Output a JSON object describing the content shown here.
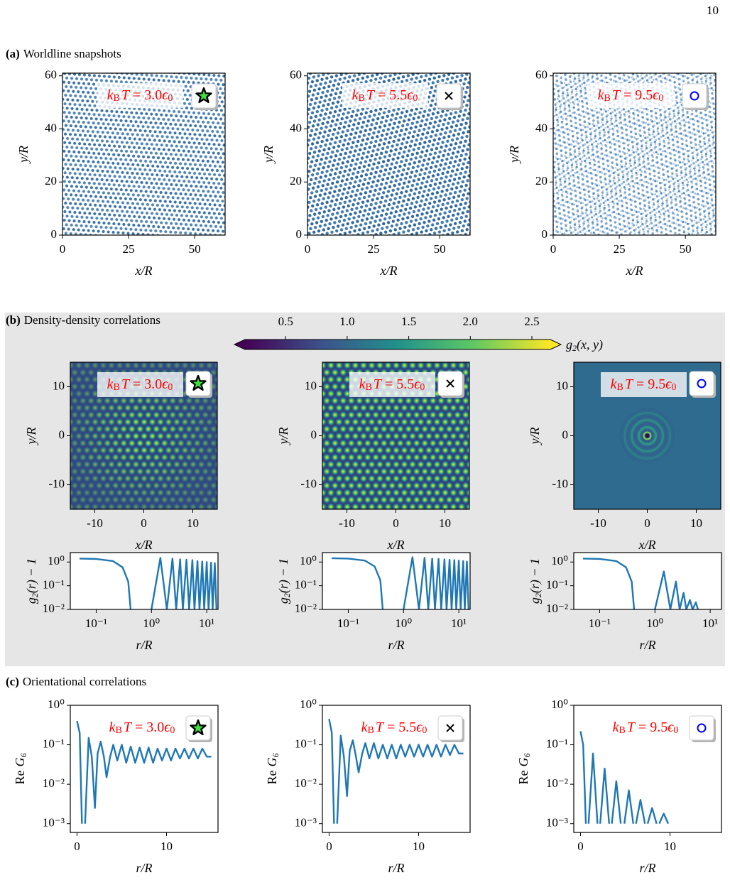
{
  "page_number": "10",
  "temperature_label": {
    "k": "k",
    "B": "B",
    "T": "T",
    "eq": " = ",
    "eps": "ϵ",
    "zero": "0"
  },
  "line_color": "#1f77b4",
  "panel_a": {
    "label": "(a)",
    "title": "Worldline snapshots",
    "xlabel": "x/R",
    "ylabel": "y/R",
    "xlim": [
      0,
      61.5
    ],
    "ylim": [
      0,
      61
    ],
    "xticks": [
      0,
      25,
      50
    ],
    "yticks": [
      0,
      20,
      40,
      60
    ],
    "plots": [
      {
        "temperature": "3.0",
        "marker": "star"
      },
      {
        "temperature": "5.5",
        "marker": "cross"
      },
      {
        "temperature": "9.5",
        "marker": "circle"
      }
    ]
  },
  "panel_b": {
    "label": "(b)",
    "title": "Density-density correlations",
    "colorbar": {
      "label": {
        "g": "g",
        "sub": "2",
        "rest": "(x, y)"
      },
      "clim": [
        0.17,
        2.65
      ],
      "ticks": [
        0.5,
        {
          "value": 1,
          "label": "1.0"
        },
        1.5,
        {
          "value": 2,
          "label": "2.0"
        },
        2.5
      ],
      "colormap": [
        "#440154",
        "#3b528b",
        "#21918c",
        "#5ec962",
        "#fde725"
      ]
    },
    "heatmap": {
      "xlabel": "x/R",
      "ylabel": "y/R",
      "xlim": [
        -15,
        15
      ],
      "ylim": [
        -15,
        15
      ],
      "xticks": [
        -10,
        0,
        10
      ],
      "yticks": [
        -10,
        0,
        10
      ]
    },
    "g2": {
      "xlabel": "r/R",
      "ylabel": {
        "g": "g",
        "sub": "2",
        "rest": "(r) − 1"
      },
      "xscale": "log",
      "yscale": "log",
      "xlim": [
        0.034,
        16
      ],
      "ylim": [
        0.01,
        2.5
      ],
      "xticks": [
        {
          "value": 0.1,
          "label": "10⁻¹"
        },
        {
          "value": 1,
          "label": "10⁰"
        },
        {
          "value": 10,
          "label": "10¹"
        }
      ],
      "yticks": [
        {
          "value": 0.01,
          "label": "10⁻²"
        },
        {
          "value": 0.1,
          "label": "10⁻¹"
        },
        {
          "value": 1,
          "label": "10⁰"
        }
      ]
    },
    "plots": [
      {
        "temperature": "3.0",
        "marker": "star",
        "r": [
          0.05,
          0.1,
          0.2,
          0.3,
          0.38,
          0.42,
          0.6,
          1.0,
          1.45,
          1.9,
          2.4,
          2.8,
          3.3,
          3.7,
          4.3,
          4.8,
          5.5,
          6.0,
          6.8,
          7.4,
          8.3,
          9.0,
          10.0,
          10.8,
          12.0,
          12.8,
          14.0,
          15.0
        ],
        "g2": [
          1.4,
          1.35,
          1.1,
          0.6,
          0.15,
          0.01,
          null,
          0.01,
          1.5,
          0.01,
          1.4,
          0.01,
          1.3,
          0.01,
          1.25,
          0.01,
          1.2,
          0.01,
          1.1,
          0.01,
          1.05,
          0.01,
          1.0,
          0.01,
          0.95,
          0.01,
          0.9,
          0.01
        ]
      },
      {
        "temperature": "5.5",
        "marker": "cross",
        "r": [
          0.05,
          0.1,
          0.2,
          0.3,
          0.38,
          0.42,
          0.6,
          1.0,
          1.45,
          1.9,
          2.4,
          2.8,
          3.3,
          3.7,
          4.3,
          4.8,
          5.5,
          6.0,
          6.8,
          7.4,
          8.3,
          9.0,
          10.0,
          10.8,
          12.0,
          12.8,
          14.0,
          15.0
        ],
        "g2": [
          1.45,
          1.4,
          1.15,
          0.65,
          0.17,
          0.01,
          null,
          0.01,
          1.6,
          0.01,
          1.5,
          0.01,
          1.4,
          0.01,
          1.35,
          0.01,
          1.3,
          0.01,
          1.25,
          0.01,
          1.2,
          0.01,
          1.15,
          0.01,
          1.1,
          0.01,
          1.05,
          0.01
        ]
      },
      {
        "temperature": "9.5",
        "marker": "circle",
        "r": [
          0.05,
          0.1,
          0.2,
          0.3,
          0.38,
          0.42,
          0.6,
          1.0,
          1.45,
          1.9,
          2.4,
          2.8,
          3.3,
          3.7,
          4.3,
          4.8,
          5.5,
          6.0
        ],
        "g2": [
          1.4,
          1.35,
          1.1,
          0.6,
          0.15,
          0.01,
          null,
          0.01,
          0.4,
          0.01,
          0.15,
          0.01,
          0.05,
          0.01,
          0.025,
          0.01,
          0.02,
          0.01
        ]
      }
    ]
  },
  "panel_c": {
    "label": "(c)",
    "title": "Orientational correlations",
    "xlabel": "r/R",
    "ylabel": {
      "re": "Re",
      "G": "G",
      "sub": "6"
    },
    "yscale": "log",
    "xlim": [
      -0.75,
      15.75
    ],
    "ylim": [
      0.0006,
      1
    ],
    "xticks": [
      0,
      10
    ],
    "yticks": [
      {
        "value": 0.001,
        "label": "10⁻³"
      },
      {
        "value": 0.01,
        "label": "10⁻²"
      },
      {
        "value": 0.1,
        "label": "10⁻¹"
      },
      {
        "value": 1,
        "label": "10⁰"
      }
    ],
    "plots": [
      {
        "temperature": "3.0",
        "marker": "star",
        "x": [
          0,
          0.3,
          0.55,
          0.62,
          0.9,
          1.3,
          1.65,
          2.0,
          2.3,
          2.65,
          3.0,
          3.3,
          3.7,
          4.05,
          4.5,
          5.0,
          5.5,
          6.0,
          6.5,
          7.0,
          7.5,
          8.0,
          8.5,
          9.0,
          9.5,
          10.0,
          10.5,
          11.0,
          11.5,
          12.0,
          12.5,
          13.0,
          13.5,
          14.0,
          14.5,
          15.0
        ],
        "values": [
          0.4,
          0.2,
          0.001,
          null,
          0.001,
          0.15,
          0.05,
          0.0025,
          0.06,
          0.12,
          0.05,
          0.015,
          0.05,
          0.1,
          0.04,
          0.1,
          0.035,
          0.09,
          0.035,
          0.085,
          0.035,
          0.085,
          0.035,
          0.08,
          0.04,
          0.08,
          0.04,
          0.08,
          0.045,
          0.08,
          0.045,
          0.08,
          0.045,
          0.08,
          0.05,
          0.05
        ]
      },
      {
        "temperature": "5.5",
        "marker": "cross",
        "x": [
          0,
          0.3,
          0.55,
          0.62,
          0.9,
          1.3,
          1.65,
          2.0,
          2.3,
          2.65,
          3.0,
          3.3,
          3.7,
          4.05,
          4.5,
          5.0,
          5.5,
          6.0,
          6.5,
          7.0,
          7.5,
          8.0,
          8.5,
          9.0,
          9.5,
          10.0,
          10.5,
          11.0,
          11.5,
          12.0,
          12.5,
          13.0,
          13.5,
          14.0,
          14.5,
          15.0
        ],
        "values": [
          0.45,
          0.2,
          0.001,
          null,
          0.001,
          0.17,
          0.05,
          0.005,
          0.07,
          0.13,
          0.05,
          0.02,
          0.06,
          0.11,
          0.045,
          0.11,
          0.045,
          0.1,
          0.045,
          0.1,
          0.045,
          0.1,
          0.05,
          0.1,
          0.05,
          0.1,
          0.05,
          0.1,
          0.05,
          0.1,
          0.05,
          0.1,
          0.055,
          0.1,
          0.06,
          0.06
        ]
      },
      {
        "temperature": "9.5",
        "marker": "circle",
        "x": [
          0,
          0.3,
          0.6,
          0.65,
          0.9,
          1.4,
          1.9,
          1.95,
          2.2,
          2.7,
          3.2,
          3.25,
          3.5,
          4.0,
          4.5,
          4.55,
          4.9,
          5.4,
          5.9,
          5.95,
          6.2,
          6.7,
          7.2,
          7.25,
          7.5,
          8.0,
          8.5,
          8.55,
          8.8,
          9.3,
          9.8
        ],
        "values": [
          0.22,
          0.1,
          0.001,
          null,
          0.001,
          0.06,
          0.001,
          null,
          0.001,
          0.025,
          0.001,
          null,
          0.001,
          0.012,
          0.001,
          null,
          0.001,
          0.007,
          0.001,
          null,
          0.001,
          0.004,
          0.001,
          null,
          0.001,
          0.0025,
          0.001,
          null,
          0.001,
          0.0018,
          0.001
        ]
      }
    ]
  }
}
